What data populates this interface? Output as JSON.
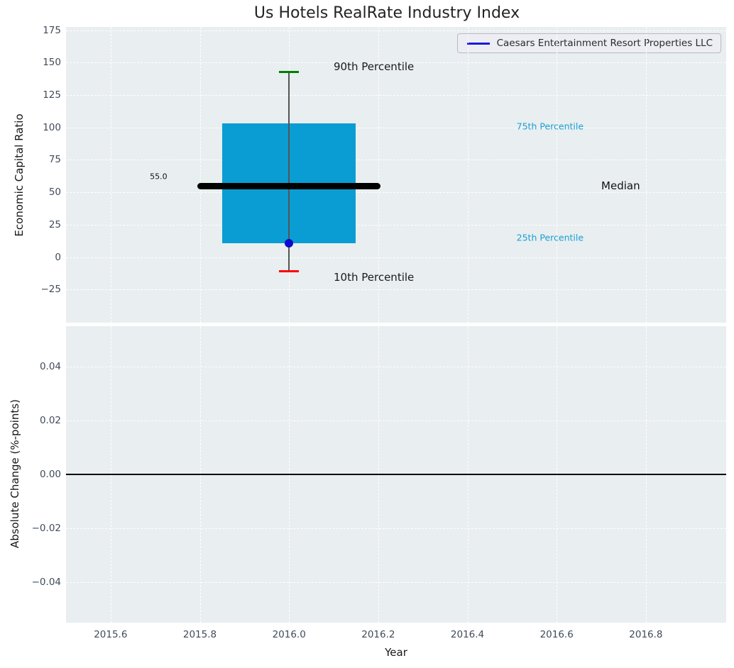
{
  "figure": {
    "title": "Us Hotels RealRate Industry Index",
    "colors": {
      "axes_bg": "#e9eef0",
      "grid": "#ffffff",
      "tick_text": "#3f4b5b",
      "title_text": "#232323"
    }
  },
  "legend": {
    "label": "Caesars Entertainment Resort Properties LLC",
    "line_color": "#1b1bdd"
  },
  "chart_data": [
    {
      "type": "box",
      "title": "Us Hotels RealRate Industry Index",
      "xlabel": "Year",
      "ylabel": "Economic Capital Ratio",
      "xlim": [
        2015.5,
        2016.98
      ],
      "ylim": [
        -50.5,
        177.5
      ],
      "xticks": [
        "2015.6",
        "2015.8",
        "2016.0",
        "2016.2",
        "2016.4",
        "2016.6",
        "2016.8"
      ],
      "xtick_values": [
        2015.6,
        2015.8,
        2016.0,
        2016.2,
        2016.4,
        2016.6,
        2016.8
      ],
      "yticks": [
        "175",
        "150",
        "125",
        "100",
        "75",
        "50",
        "25",
        "0",
        "−25"
      ],
      "ytick_values": [
        175,
        150,
        125,
        100,
        75,
        50,
        25,
        0,
        -25
      ],
      "grid": true,
      "legend_position": "upper right",
      "box": {
        "x": 2016.0,
        "p90": 143,
        "p75": 103,
        "median": 55.0,
        "p25": 11,
        "p10": -11,
        "median_label": "55.0",
        "company_name": "Caesars Entertainment Resort Properties LLC",
        "company_value": 11,
        "box_halfwidth": 0.15,
        "median_halfwidth": 0.205,
        "cap_halfwidth": 0.022
      },
      "annotations": [
        {
          "name": "p90-label",
          "text": "90th Percentile",
          "x": 2016.1,
          "y": 147,
          "color": "#1a1a1a",
          "size": 15
        },
        {
          "name": "p75-label",
          "text": "75th Percentile",
          "x": 2016.51,
          "y": 101,
          "color": "#199fd4",
          "size": 12.5
        },
        {
          "name": "median-label",
          "text": "Median",
          "x": 2016.7,
          "y": 55,
          "color": "#111111",
          "size": 15
        },
        {
          "name": "p25-label",
          "text": "25th Percentile",
          "x": 2016.51,
          "y": 15,
          "color": "#199fd4",
          "size": 12.5
        },
        {
          "name": "p10-label",
          "text": "10th Percentile",
          "x": 2016.1,
          "y": -15.5,
          "color": "#1a1a1a",
          "size": 15
        },
        {
          "name": "median-value-label",
          "text": "55.0",
          "x": 2015.688,
          "y": 62,
          "color": "#111111",
          "size": 11
        }
      ],
      "colors": {
        "box_fill": "#099dd3",
        "median_line": "#000000",
        "whisker": "#555555",
        "cap_90": "#008000",
        "cap_10": "#fb0000",
        "company_dot": "#0b0bd0"
      }
    },
    {
      "type": "line",
      "xlabel": "Year",
      "ylabel": "Absolute Change (%-points)",
      "xlim": [
        2015.5,
        2016.98
      ],
      "ylim": [
        -0.055,
        0.055
      ],
      "xticks": [
        "2015.6",
        "2015.8",
        "2016.0",
        "2016.2",
        "2016.4",
        "2016.6",
        "2016.8"
      ],
      "xtick_values": [
        2015.6,
        2015.8,
        2016.0,
        2016.2,
        2016.4,
        2016.6,
        2016.8
      ],
      "yticks": [
        "0.04",
        "0.02",
        "0.00",
        "−0.02",
        "−0.04"
      ],
      "ytick_values": [
        0.04,
        0.02,
        0,
        -0.02,
        -0.04
      ],
      "grid": true,
      "zero_line": 0.0
    }
  ]
}
